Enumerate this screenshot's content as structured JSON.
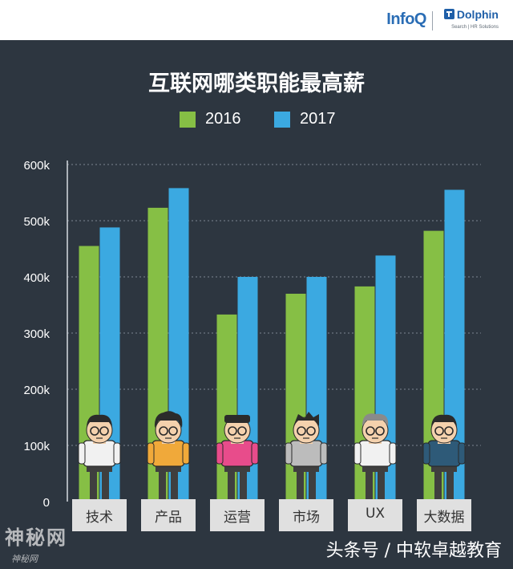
{
  "header": {
    "infoq": "InfoQ",
    "dolphin": "Dolphin",
    "dolphin_sub": "Search | HR Solutions"
  },
  "watermark": {
    "left": "神秘网",
    "left_sub": "神秘网",
    "right": "头条号 / 中软卓越教育"
  },
  "colors": {
    "background": "#2d3640",
    "series_2016": "#86bf45",
    "series_2017": "#3ba9e1",
    "category_box": "#e0e0e0"
  },
  "chart_data": {
    "type": "bar",
    "title": "互联网哪类职能最高薪",
    "categories": [
      "技术",
      "产品",
      "运营",
      "市场",
      "UX",
      "大数据"
    ],
    "series": [
      {
        "name": "2016",
        "values": [
          455000,
          523000,
          333000,
          370000,
          383000,
          482000
        ],
        "color": "#86bf45"
      },
      {
        "name": "2017",
        "values": [
          488000,
          558000,
          400000,
          400000,
          438000,
          555000
        ],
        "color": "#3ba9e1"
      }
    ],
    "yticks": [
      "0",
      "100k",
      "200k",
      "300k",
      "400k",
      "500k",
      "600k"
    ],
    "ylim": [
      0,
      600000
    ],
    "grid": true,
    "legend_position": "top",
    "illustration": "cartoon-worker-figure-per-category"
  }
}
